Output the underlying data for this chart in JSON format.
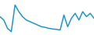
{
  "x": [
    0,
    1,
    2,
    3,
    4,
    5,
    6,
    7,
    8,
    9,
    10,
    11,
    12,
    13,
    14,
    15,
    16,
    17,
    18,
    19,
    20,
    21,
    22,
    23,
    24,
    25
  ],
  "y": [
    5,
    4,
    1.5,
    0.5,
    8.5,
    6.5,
    5,
    4,
    3.5,
    3,
    2.5,
    2,
    1.8,
    1.5,
    1.3,
    1.2,
    1.0,
    5.5,
    2,
    4.5,
    6,
    4,
    6.5,
    5,
    6,
    4.5
  ],
  "line_color": "#2196c8",
  "line_width": 1.1,
  "background_color": "#ffffff"
}
